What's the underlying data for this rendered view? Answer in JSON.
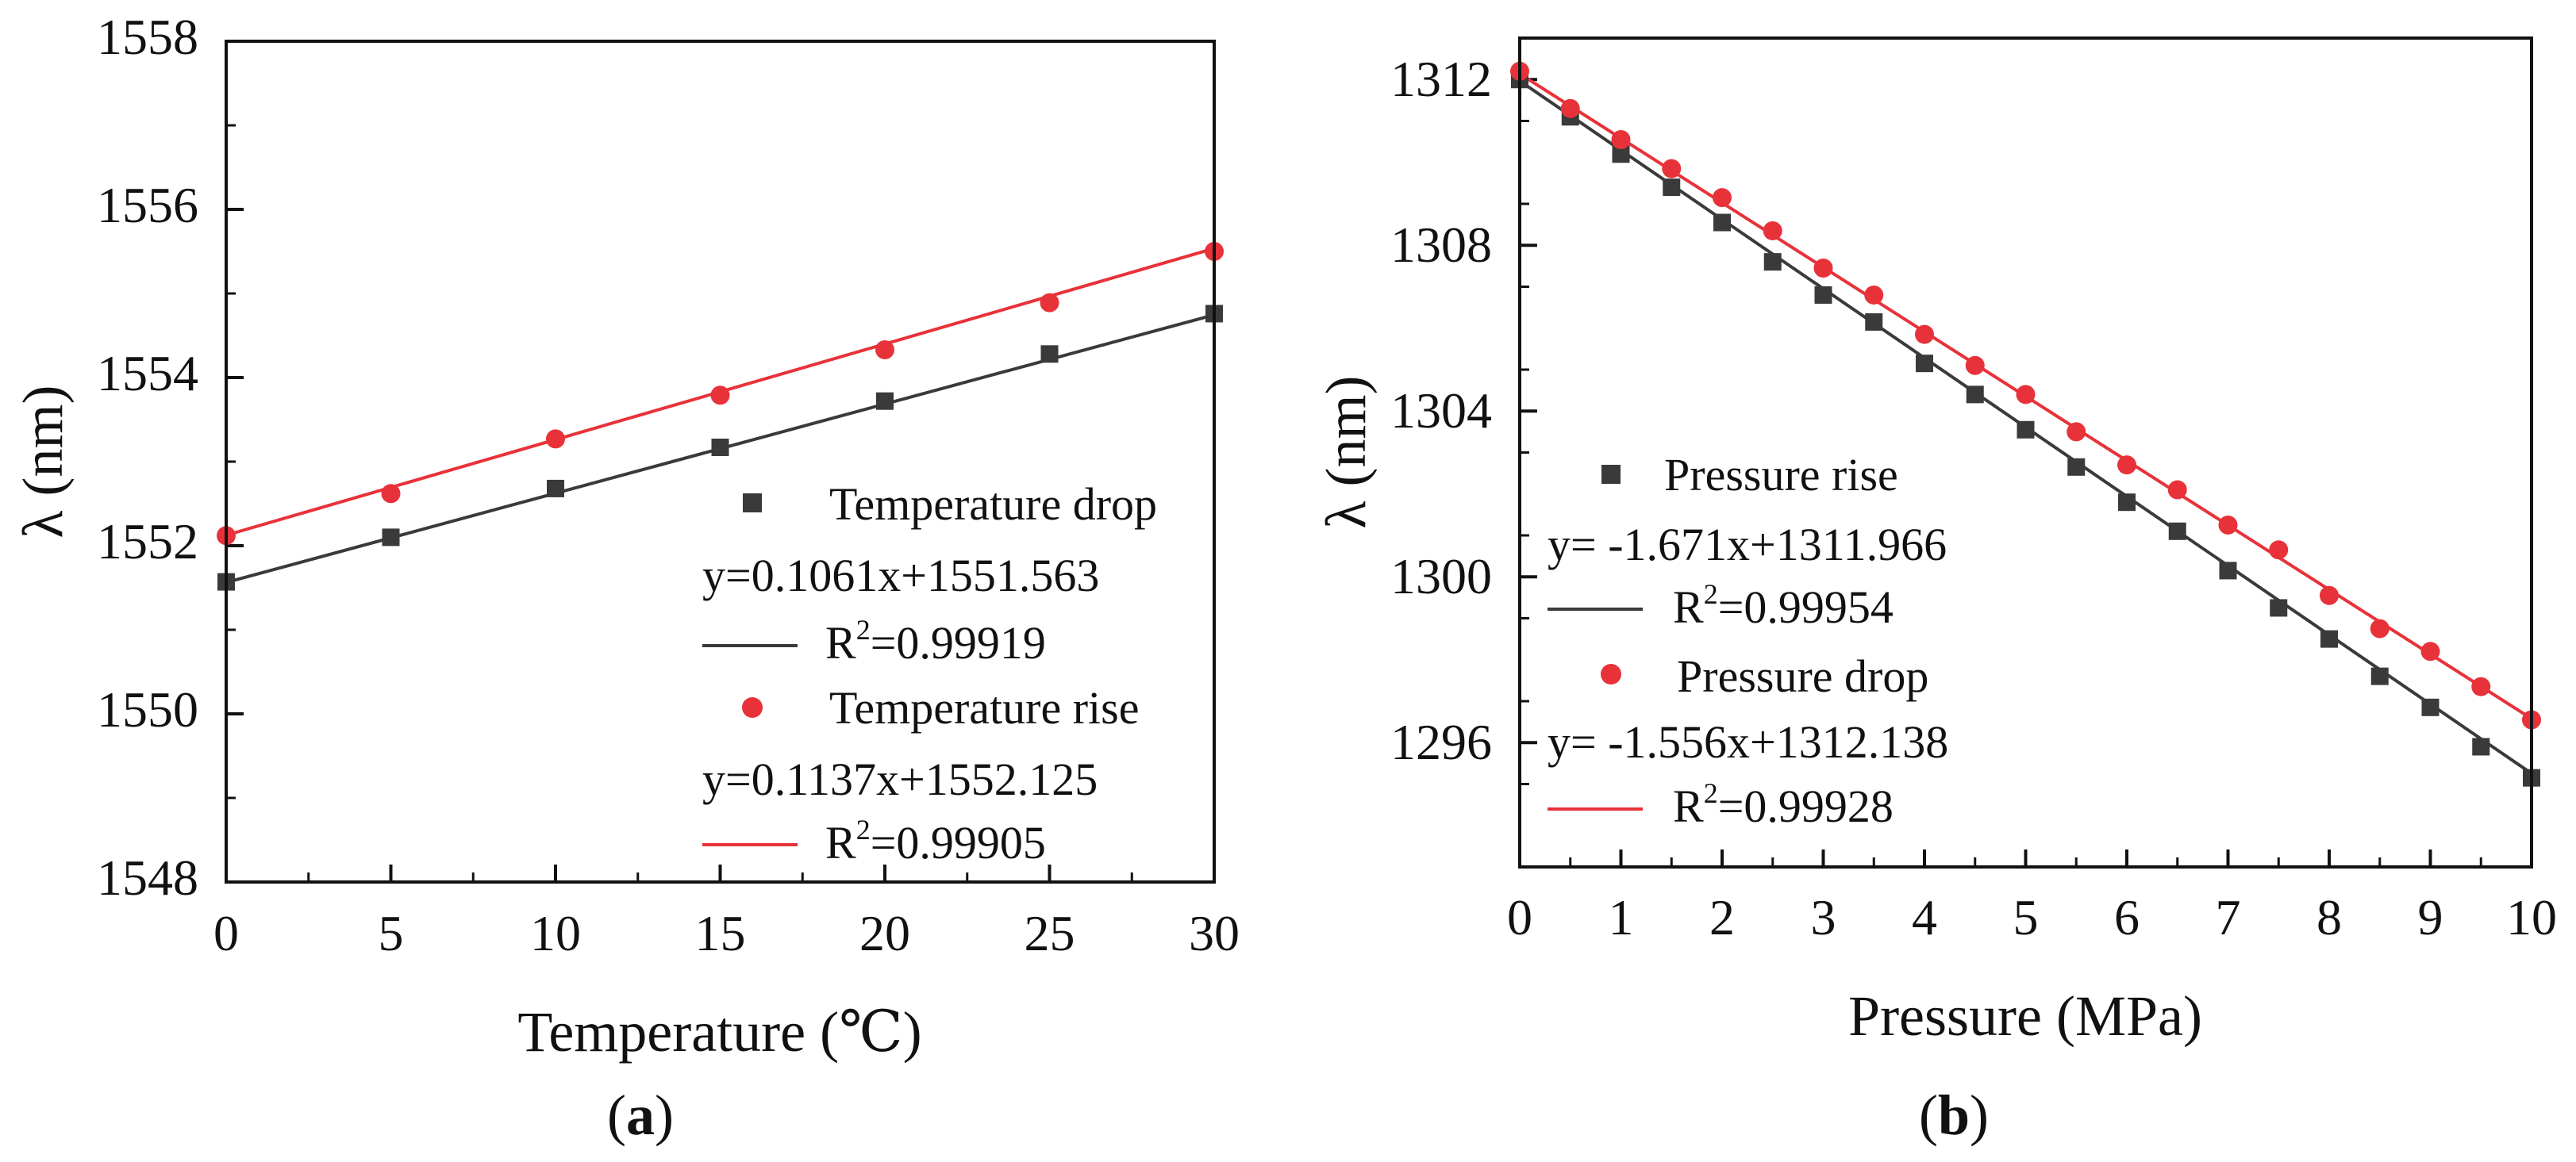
{
  "colors": {
    "black_series": "#3a3a3a",
    "red_series": "#e8323a",
    "axis": "#111111"
  },
  "chart_data": [
    {
      "type": "scatter",
      "panel_label_parts": [
        "(",
        "a",
        ")"
      ],
      "xlabel": "Temperature (℃)",
      "ylabel": "λ (nm)",
      "xlim": [
        0,
        30
      ],
      "ylim": [
        1548,
        1558
      ],
      "xticks": [
        "0",
        "5",
        "10",
        "15",
        "20",
        "25",
        "30"
      ],
      "yticks": [
        "1548",
        "1550",
        "1552",
        "1554",
        "1556",
        "1558"
      ],
      "legend_position": "bottom-right",
      "series": [
        {
          "name": "Temperature drop",
          "marker": "square",
          "color": "#3a3a3a",
          "x": [
            0,
            5,
            10,
            15,
            20,
            25,
            30
          ],
          "y": [
            1551.57,
            1552.1,
            1552.68,
            1553.17,
            1553.72,
            1554.28,
            1554.76
          ],
          "fit": {
            "slope": 0.1061,
            "intercept": 1551.563
          },
          "equation": "y=0.1061x+1551.563",
          "r2_value": "=0.99919"
        },
        {
          "name": "Temperature rise",
          "marker": "circle",
          "color": "#e8323a",
          "x": [
            0,
            5,
            10,
            15,
            20,
            25,
            30
          ],
          "y": [
            1552.12,
            1552.62,
            1553.27,
            1553.79,
            1554.33,
            1554.89,
            1555.5
          ],
          "fit": {
            "slope": 0.1137,
            "intercept": 1552.125
          },
          "equation": "y=0.1137x+1552.125",
          "r2_value": "=0.99905"
        }
      ]
    },
    {
      "type": "scatter",
      "panel_label_parts": [
        "(",
        "b",
        ")"
      ],
      "xlabel": "Pressure (MPa)",
      "ylabel": "λ (nm)",
      "xlim": [
        0,
        10
      ],
      "ylim": [
        1293,
        1313
      ],
      "xticks": [
        "0",
        "1",
        "2",
        "3",
        "4",
        "5",
        "6",
        "7",
        "8",
        "9",
        "10"
      ],
      "yticks": [
        "1296",
        "1300",
        "1304",
        "1308",
        "1312"
      ],
      "legend_position": "bottom-left",
      "series": [
        {
          "name": "Pressure rise",
          "marker": "square",
          "color": "#3a3a3a",
          "x": [
            0,
            0.5,
            1,
            1.5,
            2,
            2.5,
            3,
            3.5,
            4,
            4.5,
            5,
            5.5,
            6,
            6.5,
            7,
            7.5,
            8,
            8.5,
            9,
            9.5,
            10
          ],
          "y": [
            1312.0,
            1311.1,
            1310.2,
            1309.4,
            1308.55,
            1307.6,
            1306.8,
            1306.15,
            1305.15,
            1304.4,
            1303.55,
            1302.65,
            1301.8,
            1301.1,
            1300.15,
            1299.25,
            1298.5,
            1297.6,
            1296.85,
            1295.9,
            1295.15
          ],
          "fit": {
            "slope": -1.671,
            "intercept": 1311.966
          },
          "equation": "y= -1.671x+1311.966",
          "r2_value": "=0.99954"
        },
        {
          "name": "Pressure drop",
          "marker": "circle",
          "color": "#e8323a",
          "x": [
            0,
            0.5,
            1,
            1.5,
            2,
            2.5,
            3,
            3.5,
            4,
            4.5,
            5,
            5.5,
            6,
            6.5,
            7,
            7.5,
            8,
            8.5,
            9,
            9.5,
            10
          ],
          "y": [
            1312.2,
            1311.3,
            1310.55,
            1309.85,
            1309.15,
            1308.35,
            1307.45,
            1306.8,
            1305.85,
            1305.1,
            1304.4,
            1303.5,
            1302.7,
            1302.1,
            1301.25,
            1300.65,
            1299.55,
            1298.75,
            1298.2,
            1297.35,
            1296.55
          ],
          "fit": {
            "slope": -1.556,
            "intercept": 1312.138
          },
          "equation": "y= -1.556x+1312.138",
          "r2_value": "=0.99928"
        }
      ]
    }
  ]
}
